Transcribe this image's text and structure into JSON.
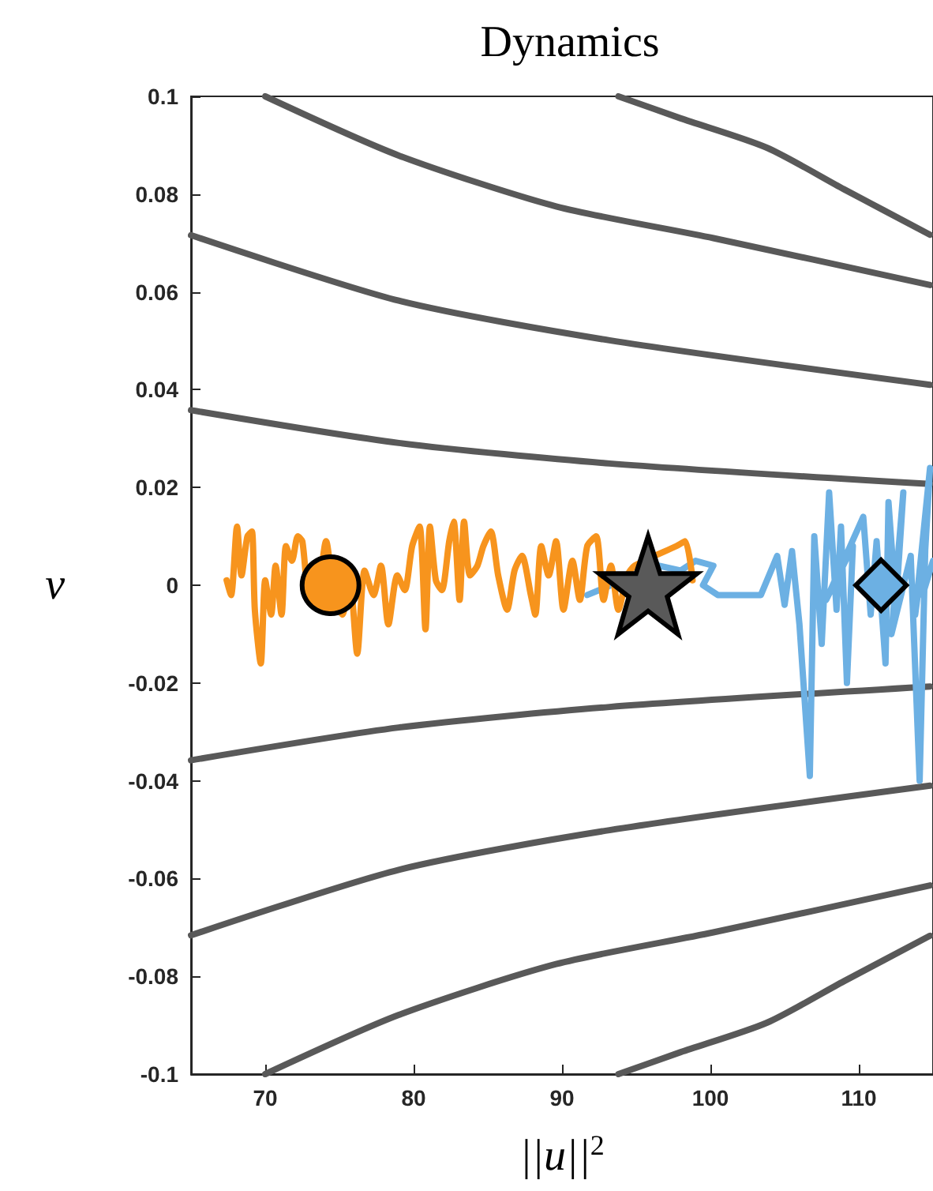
{
  "chart_data": {
    "type": "line",
    "title": "Dynamics",
    "xlabel": "||u||$^{2}$",
    "ylabel": "v",
    "xlim": [
      65,
      115
    ],
    "xticks": [
      70,
      80,
      90,
      100,
      110
    ],
    "ylim": [
      -0.1,
      0.1
    ],
    "yticks": [
      -0.1,
      -0.08,
      -0.06,
      -0.04,
      -0.02,
      0,
      0.02,
      0.04,
      0.06,
      0.08,
      0.1
    ],
    "grid": false,
    "series": [
      {
        "type": "line",
        "marker": "none",
        "color": "#595959",
        "x": [
          93.8,
          98,
          103.8,
          109,
          114.8
        ],
        "values": [
          0.1,
          0.0955,
          0.0895,
          0.081,
          0.0717
        ]
      },
      {
        "type": "line",
        "marker": "none",
        "color": "#595959",
        "x": [
          70,
          79,
          89.6,
          100.2,
          114.8
        ],
        "values": [
          0.1,
          0.0879,
          0.0775,
          0.071,
          0.0614
        ]
      },
      {
        "type": "line",
        "marker": "none",
        "color": "#595959",
        "x": [
          65,
          79,
          93.2,
          114.8
        ],
        "values": [
          0.0716,
          0.0582,
          0.0501,
          0.041
        ]
      },
      {
        "type": "line",
        "marker": "none",
        "color": "#595959",
        "x": [
          65,
          79,
          93.2,
          114.8
        ],
        "values": [
          0.0358,
          0.0291,
          0.0249,
          0.0207
        ]
      },
      {
        "type": "line",
        "marker": "none",
        "color": "#595959",
        "x": [
          65,
          79,
          93.2,
          114.8
        ],
        "values": [
          -0.0358,
          -0.0291,
          -0.0249,
          -0.0207
        ]
      },
      {
        "type": "line",
        "marker": "none",
        "color": "#595959",
        "x": [
          65,
          79,
          93.2,
          114.8
        ],
        "values": [
          -0.0716,
          -0.0582,
          -0.0501,
          -0.041
        ]
      },
      {
        "type": "line",
        "marker": "none",
        "color": "#595959",
        "x": [
          70,
          79,
          89.6,
          100.2,
          114.8
        ],
        "values": [
          -0.1,
          -0.0879,
          -0.0775,
          -0.071,
          -0.0614
        ]
      },
      {
        "type": "line",
        "marker": "none",
        "color": "#595959",
        "x": [
          93.8,
          98,
          103.8,
          109,
          114.8
        ],
        "values": [
          -0.1,
          -0.0955,
          -0.0895,
          -0.081,
          -0.0717
        ]
      },
      {
        "type": "line",
        "marker": "none",
        "color": "#6cb0e3",
        "x": [
          91.7,
          93,
          95,
          96.5,
          98,
          99,
          100.2,
          99.5,
          100.5,
          103.4,
          104.5,
          105,
          105.5,
          106,
          106.7,
          107,
          107.5,
          108,
          108.5,
          108.8,
          109.2,
          109.6,
          107.8,
          110.3,
          110.8,
          111.2,
          111.8,
          112,
          112.5,
          113,
          112.2,
          113.5,
          114.1,
          114.5,
          113.8,
          114.8,
          114.3,
          115
        ],
        "values": [
          -0.002,
          null,
          null,
          0.004,
          0.003,
          0.005,
          0.004,
          0.0,
          -0.002,
          -0.002,
          0.006,
          -0.004,
          0.007,
          -0.008,
          -0.039,
          0.01,
          -0.012,
          0.019,
          -0.005,
          0.012,
          -0.02,
          0.008,
          -0.003,
          0.014,
          -0.006,
          0.009,
          -0.016,
          0.017,
          -0.004,
          0.019,
          -0.01,
          0.006,
          -0.04,
          0.01,
          -0.006,
          0.024,
          -0.002,
          0.005
        ]
      },
      {
        "type": "line",
        "marker": "none",
        "color": "#f7941d",
        "x": [
          67.4,
          67.7,
          68.1,
          68.4,
          68.8,
          69.1,
          69.3,
          69.7,
          70.0,
          70.4,
          70.7,
          71.1,
          71.4,
          71.8,
          72.2,
          72.5,
          73.0,
          73.6,
          74.1,
          74.6,
          75.2,
          75.7,
          76.2,
          76.7,
          77.3,
          77.8,
          78.3,
          78.9,
          79.4,
          79.9,
          80.4,
          80.8,
          81.1,
          81.5,
          81.9,
          82.4,
          82.7,
          83.1,
          83.4,
          83.8,
          84.3,
          84.7,
          85.2,
          85.7,
          86.3,
          86.8,
          87.3,
          87.9,
          88.2,
          88.6,
          89.1,
          89.6,
          90.1,
          90.7,
          91.2,
          91.7,
          92.3,
          92.8,
          93.3,
          93.8,
          94.4,
          94.9,
          95.6,
          96.3,
          97.0,
          97.7,
          98.3,
          98.8
        ],
        "values": [
          0.001,
          -0.002,
          0.012,
          0.002,
          0.01,
          0.011,
          -0.005,
          -0.016,
          0.001,
          -0.006,
          0.004,
          -0.006,
          0.008,
          0.005,
          0.01,
          0.009,
          -0.003,
          0,
          0.009,
          -0.001,
          -0.006,
          0.001,
          -0.014,
          0.003,
          -0.002,
          0.004,
          -0.008,
          0.002,
          -0.001,
          0.008,
          0.012,
          -0.009,
          0.012,
          0.001,
          -0.001,
          0.009,
          0.013,
          -0.003,
          0.013,
          0.002,
          0.004,
          0.008,
          0.011,
          0.002,
          -0.005,
          0.003,
          0.006,
          -0.002,
          -0.006,
          0.008,
          0.002,
          0.009,
          -0.005,
          0.005,
          -0.003,
          0.008,
          0.01,
          -0.003,
          0.004,
          -0.005,
          0.002,
          0.004,
          null,
          null,
          null,
          0.008,
          0.009,
          0.001
        ]
      },
      {
        "type": "scatter",
        "marker": "circle",
        "color": "#f7941d",
        "x": [
          74.4
        ],
        "values": [
          0
        ]
      },
      {
        "type": "scatter",
        "marker": "star",
        "color": "#595959",
        "x": [
          95.8
        ],
        "values": [
          0
        ]
      },
      {
        "type": "scatter",
        "marker": "diamond",
        "color": "#6cb0e3",
        "x": [
          111.5
        ],
        "values": [
          0
        ]
      }
    ]
  }
}
